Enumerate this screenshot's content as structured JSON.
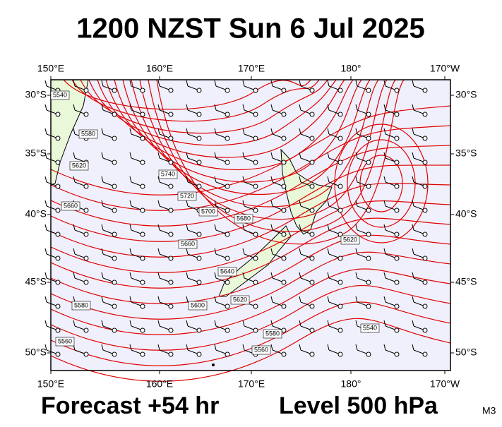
{
  "title": "1200 NZST Sun 6 Jul 2025",
  "map": {
    "lon_labels": [
      "150°E",
      "160°E",
      "170°E",
      "180°",
      "170°W"
    ],
    "lat_labels": [
      "30°S",
      "35°S",
      "40°S",
      "45°S",
      "50°S"
    ],
    "contour_labels": [
      "5540",
      "5580",
      "5620",
      "5660",
      "5740",
      "5720",
      "5700",
      "5680",
      "5660",
      "5640",
      "5620",
      "5600",
      "5580",
      "5560",
      "5560",
      "5580",
      "5540",
      "5620"
    ]
  },
  "footer": {
    "forecast": "Forecast +54 hr",
    "level": "Level 500 hPa",
    "code": "M3"
  }
}
